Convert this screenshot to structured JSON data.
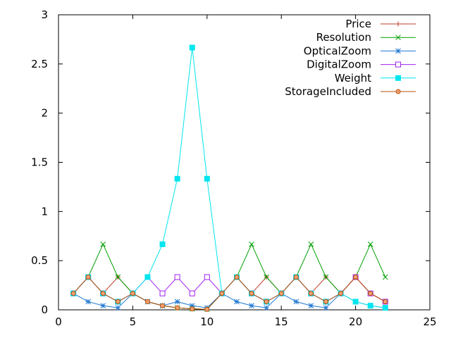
{
  "chart_data": {
    "type": "line",
    "title": "",
    "xlabel": "",
    "ylabel": "",
    "xlim": [
      0,
      25
    ],
    "ylim": [
      0,
      3
    ],
    "x_ticks": [
      "0",
      "5",
      "10",
      "15",
      "20",
      "25"
    ],
    "y_ticks": [
      "0",
      "0.5",
      "1",
      "1.5",
      "2",
      "2.5",
      "3"
    ],
    "grid": false,
    "legend_position": "top-right",
    "series": [
      {
        "name": "Price",
        "color": "#c0392b",
        "marker": "plus",
        "x": [
          1,
          2,
          3,
          4,
          5,
          6,
          7,
          8,
          9,
          10,
          11,
          12,
          13,
          14,
          15,
          16,
          17,
          18,
          19,
          20,
          21,
          22
        ],
        "y": [
          0.167,
          0.333,
          0.167,
          0.333,
          0.167,
          0.083,
          0.042,
          0.021,
          0.01,
          0.005,
          0.167,
          0.333,
          0.167,
          0.333,
          0.167,
          0.333,
          0.167,
          0.333,
          0.167,
          0.333,
          0.167,
          0.083
        ]
      },
      {
        "name": "Resolution",
        "color": "#00a000",
        "marker": "cross",
        "x": [
          1,
          2,
          3,
          4,
          5,
          6,
          7,
          8,
          9,
          10,
          11,
          12,
          13,
          14,
          15,
          16,
          17,
          18,
          19,
          20,
          21,
          22
        ],
        "y": [
          0.167,
          0.333,
          0.667,
          0.333,
          0.167,
          0.083,
          0.042,
          0.021,
          0.01,
          0.005,
          0.167,
          0.333,
          0.667,
          0.333,
          0.167,
          0.333,
          0.667,
          0.333,
          0.167,
          0.333,
          0.667,
          0.333
        ]
      },
      {
        "name": "OpticalZoom",
        "color": "#1f77d0",
        "marker": "star",
        "x": [
          1,
          2,
          3,
          4,
          5,
          6,
          7,
          8,
          9,
          10,
          11,
          12,
          13,
          14,
          15,
          16,
          17,
          18,
          19,
          20,
          21,
          22
        ],
        "y": [
          0.167,
          0.083,
          0.042,
          0.021,
          0.167,
          0.083,
          0.042,
          0.083,
          0.042,
          0.021,
          0.167,
          0.083,
          0.042,
          0.021,
          0.167,
          0.083,
          0.042,
          0.021,
          0.167,
          0.083,
          0.042,
          0.021
        ]
      },
      {
        "name": "DigitalZoom",
        "color": "#a020f0",
        "marker": "square-open",
        "x": [
          1,
          2,
          3,
          4,
          5,
          6,
          7,
          8,
          9,
          10,
          11,
          12,
          13,
          14,
          15,
          16,
          17,
          18,
          19,
          20,
          21,
          22
        ],
        "y": [
          0.167,
          0.333,
          0.167,
          0.083,
          0.167,
          0.333,
          0.167,
          0.333,
          0.167,
          0.333,
          0.167,
          0.333,
          0.167,
          0.083,
          0.167,
          0.333,
          0.167,
          0.083,
          0.167,
          0.333,
          0.167,
          0.083
        ]
      },
      {
        "name": "Weight",
        "color": "#00e5ee",
        "marker": "square-filled",
        "x": [
          1,
          2,
          3,
          4,
          5,
          6,
          7,
          8,
          9,
          10,
          11,
          12,
          13,
          14,
          15,
          16,
          17,
          18,
          19,
          20,
          21,
          22
        ],
        "y": [
          0.167,
          0.333,
          0.167,
          0.083,
          0.167,
          0.333,
          0.667,
          1.333,
          2.667,
          1.333,
          0.167,
          0.333,
          0.167,
          0.083,
          0.167,
          0.333,
          0.167,
          0.083,
          0.167,
          0.083,
          0.042,
          0.021
        ]
      },
      {
        "name": "StorageIncluded",
        "color": "#b8500b",
        "marker": "circle",
        "x": [
          1,
          2,
          3,
          4,
          5,
          6,
          7,
          8,
          9,
          10,
          11,
          12,
          13,
          14,
          15,
          16,
          17,
          18,
          19,
          20,
          21,
          22
        ],
        "y": [
          0.167,
          0.333,
          0.167,
          0.083,
          0.167,
          0.083,
          0.042,
          0.021,
          0.01,
          0.005,
          0.167,
          0.333,
          0.167,
          0.083,
          0.167,
          0.333,
          0.167,
          0.083,
          0.167,
          0.333,
          0.167,
          0.083
        ]
      }
    ]
  }
}
